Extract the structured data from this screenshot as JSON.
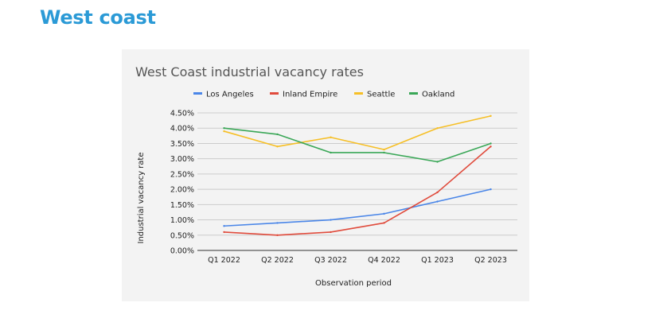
{
  "page": {
    "heading": "West coast"
  },
  "chart_data": {
    "type": "line",
    "title": "West Coast industrial vacancy rates",
    "xlabel": "Observation period",
    "ylabel": "Industrial vacancy rate",
    "categories": [
      "Q1 2022",
      "Q2 2022",
      "Q3 2022",
      "Q4 2022",
      "Q1 2023",
      "Q2 2023"
    ],
    "yticks": [
      "0.00%",
      "0.50%",
      "1.00%",
      "1.50%",
      "2.00%",
      "2.50%",
      "3.00%",
      "3.50%",
      "4.00%",
      "4.50%"
    ],
    "ylim": [
      0,
      4.5
    ],
    "grid": true,
    "legend_position": "top",
    "series": [
      {
        "name": "Los Angeles",
        "color": "#4a86e8",
        "values": [
          0.8,
          0.9,
          1.0,
          1.2,
          1.6,
          2.0
        ]
      },
      {
        "name": "Inland Empire",
        "color": "#e04b3c",
        "values": [
          0.6,
          0.5,
          0.6,
          0.9,
          1.9,
          3.4
        ]
      },
      {
        "name": "Seattle",
        "color": "#f6bf26",
        "values": [
          3.9,
          3.4,
          3.7,
          3.3,
          4.0,
          4.4
        ]
      },
      {
        "name": "Oakland",
        "color": "#3aa757",
        "values": [
          4.0,
          3.8,
          3.2,
          3.2,
          2.9,
          3.5
        ]
      }
    ]
  }
}
